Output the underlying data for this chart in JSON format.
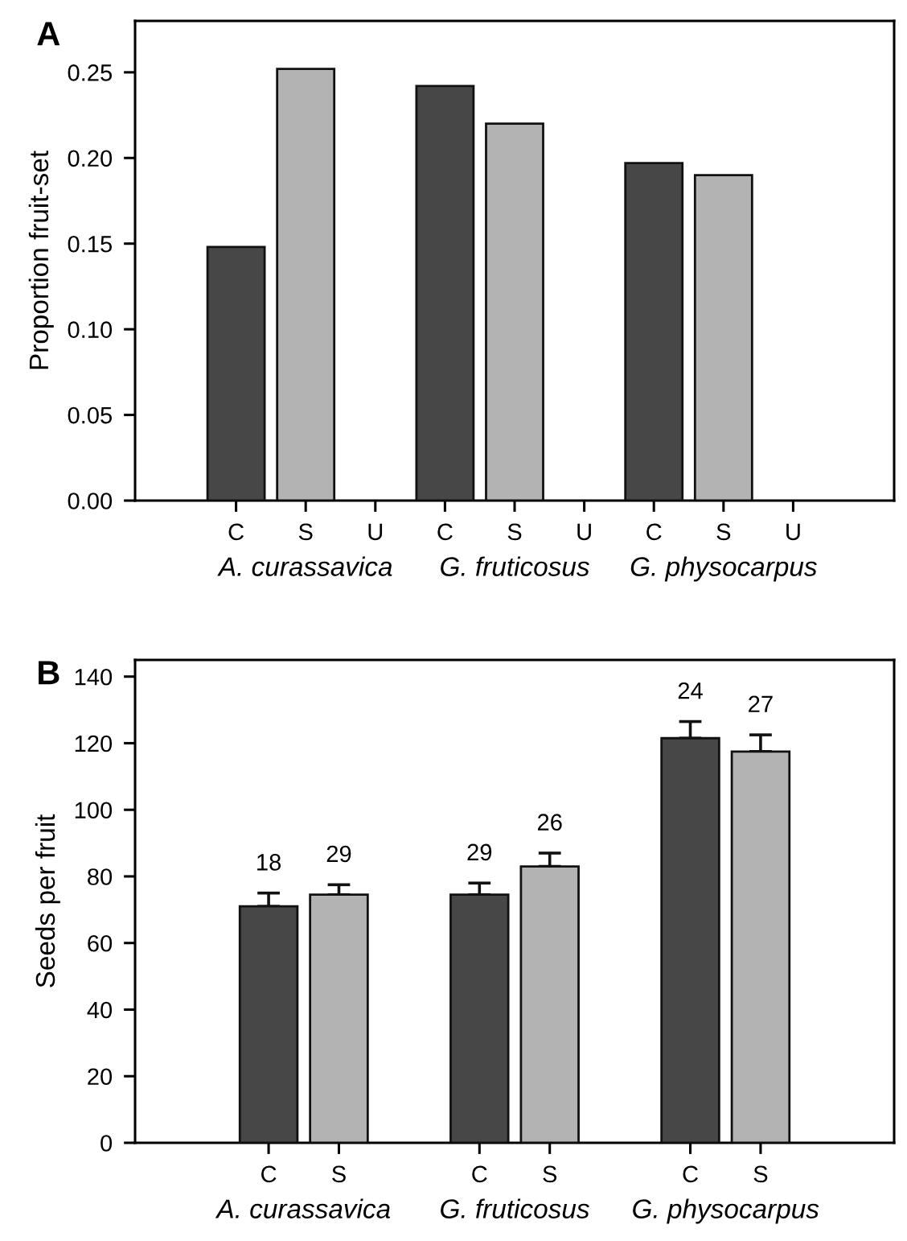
{
  "chart_data": [
    {
      "type": "bar",
      "title": "A",
      "ylabel": "Proportion fruit-set",
      "categories": [
        "C",
        "S",
        "U",
        "C",
        "S",
        "U",
        "C",
        "S",
        "U"
      ],
      "values": [
        0.148,
        0.252,
        0,
        0.242,
        0.22,
        0,
        0.197,
        0.19,
        0
      ],
      "colors": [
        "#474747",
        "#b3b3b3",
        "#b3b3b3",
        "#474747",
        "#b3b3b3",
        "#b3b3b3",
        "#474747",
        "#b3b3b3",
        "#b3b3b3"
      ],
      "ylim": [
        0,
        0.28
      ],
      "yticks": [
        {
          "value": 0,
          "label": "0.00"
        },
        0.05,
        {
          "value": 0.1,
          "label": "0.10"
        },
        0.15,
        {
          "value": 0.2,
          "label": "0.20"
        },
        0.25
      ],
      "annotations": [
        "A. curassavica",
        "G. fruticosus",
        "G. physocarpus"
      ],
      "grid": false
    },
    {
      "type": "bar",
      "title": "B",
      "ylabel": "Seeds per fruit",
      "categories": [
        "C",
        "S",
        null,
        "C",
        "S",
        null,
        "C",
        "S"
      ],
      "values": [
        71,
        74.5,
        null,
        74.5,
        83,
        null,
        121.5,
        117.5
      ],
      "errors": [
        [
          71,
          75
        ],
        [
          74.5,
          77.5
        ],
        null,
        [
          74.5,
          78
        ],
        [
          83,
          87
        ],
        null,
        [
          121.5,
          126.5
        ],
        [
          117.5,
          122.5
        ]
      ],
      "colors": [
        "#474747",
        "#b3b3b3",
        null,
        "#474747",
        "#b3b3b3",
        null,
        "#474747",
        "#b3b3b3"
      ],
      "ylim": [
        0,
        145
      ],
      "yticks": [
        0,
        20,
        40,
        60,
        80,
        100,
        120,
        140
      ],
      "annotations": [
        "18",
        "29",
        "29",
        "26",
        "24",
        "27",
        "A. curassavica",
        "G. fruticosus",
        "G. physocarpus"
      ],
      "grid": false
    }
  ]
}
